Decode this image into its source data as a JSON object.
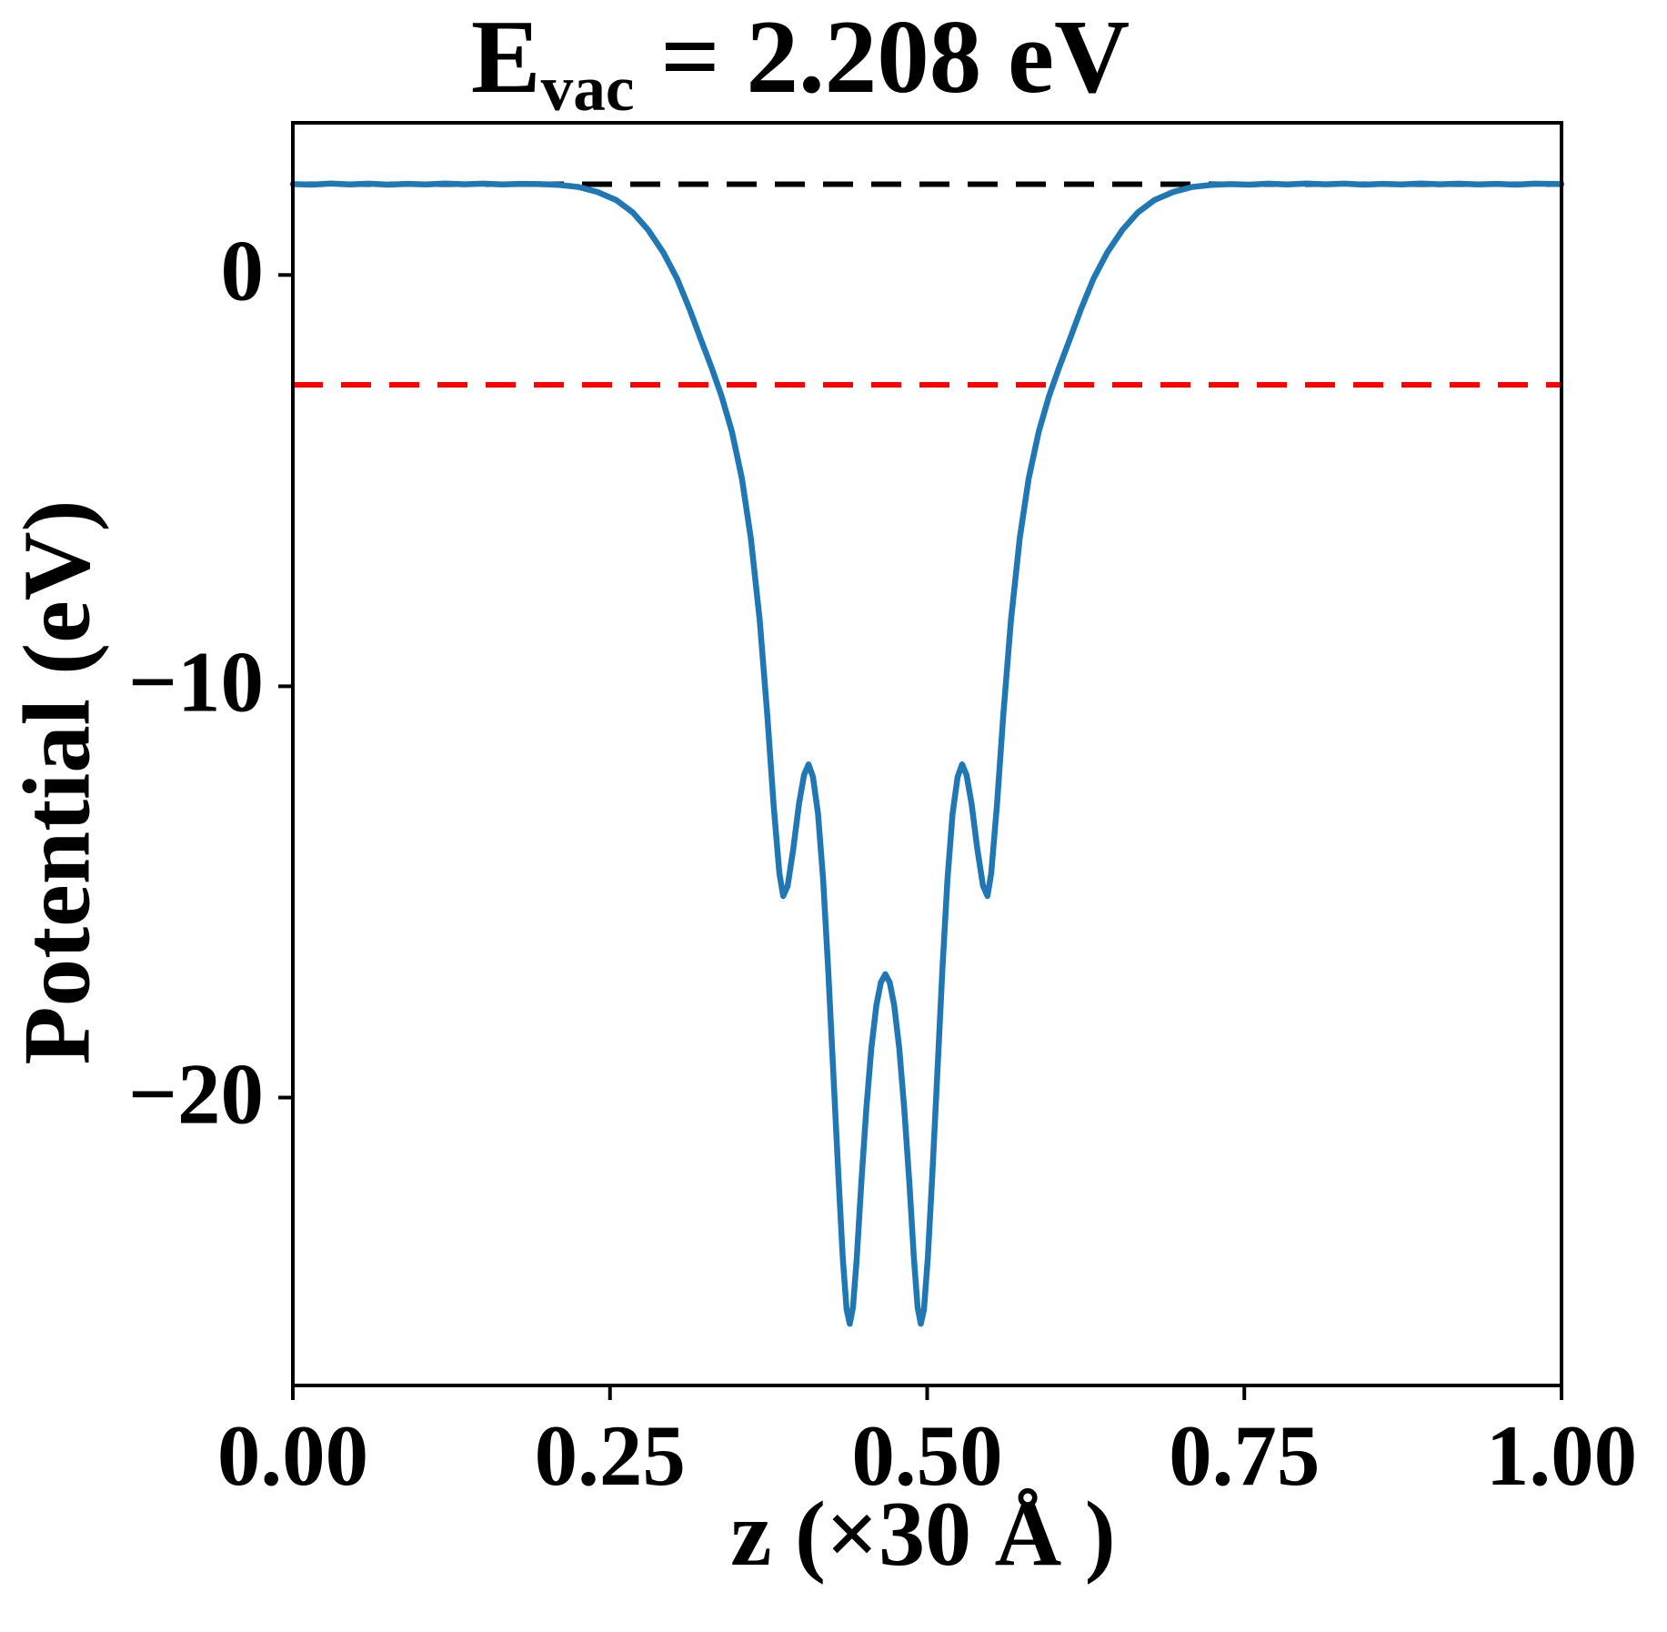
{
  "figure": {
    "title": {
      "symbol": "E",
      "subscript": "vac",
      "equals": " = 2.208 eV"
    },
    "xlabel": "z (×30 Å )",
    "ylabel": "Potential (eV)"
  },
  "chart_data": {
    "type": "line",
    "title": "E_vac = 2.208 eV",
    "xlabel": "z (×30 Å )",
    "ylabel": "Potential (eV)",
    "xlim": [
      0,
      1
    ],
    "ylim": [
      -27,
      3.7
    ],
    "grid": false,
    "legend": null,
    "xticks": {
      "values": [
        0,
        0.25,
        0.5,
        0.75,
        1.0
      ],
      "labels": [
        "0.00",
        "0.25",
        "0.50",
        "0.75",
        "1.00"
      ]
    },
    "yticks": {
      "values": [
        0,
        -10,
        -20
      ],
      "labels": [
        "0",
        "−10",
        "−20"
      ]
    },
    "reference_lines": [
      {
        "name": "vacuum-level",
        "y": 2.208,
        "color": "#000000",
        "style": "dashed"
      },
      {
        "name": "reference-level",
        "y": -2.67,
        "color": "#ff0000",
        "style": "dashed"
      }
    ],
    "series": [
      {
        "name": "planar-averaged-potential",
        "color": "#1f77b4",
        "points": [
          [
            0.0,
            2.21
          ],
          [
            0.015,
            2.195
          ],
          [
            0.03,
            2.225
          ],
          [
            0.045,
            2.2
          ],
          [
            0.06,
            2.22
          ],
          [
            0.075,
            2.195
          ],
          [
            0.09,
            2.215
          ],
          [
            0.105,
            2.2
          ],
          [
            0.12,
            2.225
          ],
          [
            0.135,
            2.205
          ],
          [
            0.15,
            2.22
          ],
          [
            0.165,
            2.2
          ],
          [
            0.18,
            2.215
          ],
          [
            0.195,
            2.21
          ],
          [
            0.21,
            2.19
          ],
          [
            0.225,
            2.14
          ],
          [
            0.24,
            2.02
          ],
          [
            0.255,
            1.82
          ],
          [
            0.268,
            1.52
          ],
          [
            0.28,
            1.1
          ],
          [
            0.292,
            0.55
          ],
          [
            0.303,
            -0.1
          ],
          [
            0.313,
            -0.85
          ],
          [
            0.322,
            -1.6
          ],
          [
            0.33,
            -2.25
          ],
          [
            0.338,
            -2.95
          ],
          [
            0.346,
            -3.8
          ],
          [
            0.354,
            -4.95
          ],
          [
            0.361,
            -6.4
          ],
          [
            0.368,
            -8.4
          ],
          [
            0.374,
            -10.7
          ],
          [
            0.379,
            -12.9
          ],
          [
            0.3835,
            -14.55
          ],
          [
            0.3865,
            -15.1
          ],
          [
            0.39,
            -14.85
          ],
          [
            0.3945,
            -13.95
          ],
          [
            0.399,
            -12.85
          ],
          [
            0.403,
            -12.15
          ],
          [
            0.4065,
            -11.9
          ],
          [
            0.41,
            -12.2
          ],
          [
            0.414,
            -13.1
          ],
          [
            0.418,
            -14.7
          ],
          [
            0.422,
            -16.9
          ],
          [
            0.426,
            -19.4
          ],
          [
            0.43,
            -21.9
          ],
          [
            0.4335,
            -23.9
          ],
          [
            0.4365,
            -25.15
          ],
          [
            0.439,
            -25.5
          ],
          [
            0.4415,
            -25.1
          ],
          [
            0.4445,
            -23.9
          ],
          [
            0.448,
            -22.1
          ],
          [
            0.452,
            -20.3
          ],
          [
            0.456,
            -18.8
          ],
          [
            0.46,
            -17.75
          ],
          [
            0.4635,
            -17.2
          ],
          [
            0.467,
            -17.0
          ],
          [
            0.4705,
            -17.2
          ],
          [
            0.474,
            -17.75
          ],
          [
            0.478,
            -18.8
          ],
          [
            0.482,
            -20.3
          ],
          [
            0.486,
            -22.1
          ],
          [
            0.4895,
            -23.9
          ],
          [
            0.4925,
            -25.1
          ],
          [
            0.495,
            -25.5
          ],
          [
            0.4975,
            -25.15
          ],
          [
            0.5005,
            -23.9
          ],
          [
            0.504,
            -21.9
          ],
          [
            0.508,
            -19.4
          ],
          [
            0.512,
            -16.9
          ],
          [
            0.516,
            -14.7
          ],
          [
            0.52,
            -13.1
          ],
          [
            0.524,
            -12.2
          ],
          [
            0.5275,
            -11.9
          ],
          [
            0.531,
            -12.15
          ],
          [
            0.535,
            -12.85
          ],
          [
            0.5395,
            -13.95
          ],
          [
            0.544,
            -14.85
          ],
          [
            0.5475,
            -15.1
          ],
          [
            0.5505,
            -14.55
          ],
          [
            0.555,
            -12.9
          ],
          [
            0.56,
            -10.7
          ],
          [
            0.566,
            -8.4
          ],
          [
            0.573,
            -6.4
          ],
          [
            0.58,
            -4.95
          ],
          [
            0.588,
            -3.8
          ],
          [
            0.596,
            -2.95
          ],
          [
            0.604,
            -2.25
          ],
          [
            0.612,
            -1.6
          ],
          [
            0.621,
            -0.85
          ],
          [
            0.631,
            -0.1
          ],
          [
            0.642,
            0.55
          ],
          [
            0.654,
            1.1
          ],
          [
            0.666,
            1.52
          ],
          [
            0.679,
            1.82
          ],
          [
            0.694,
            2.02
          ],
          [
            0.709,
            2.14
          ],
          [
            0.724,
            2.19
          ],
          [
            0.739,
            2.21
          ],
          [
            0.754,
            2.195
          ],
          [
            0.769,
            2.22
          ],
          [
            0.784,
            2.2
          ],
          [
            0.799,
            2.225
          ],
          [
            0.814,
            2.205
          ],
          [
            0.829,
            2.22
          ],
          [
            0.844,
            2.195
          ],
          [
            0.859,
            2.215
          ],
          [
            0.874,
            2.2
          ],
          [
            0.889,
            2.225
          ],
          [
            0.904,
            2.205
          ],
          [
            0.919,
            2.22
          ],
          [
            0.934,
            2.2
          ],
          [
            0.949,
            2.215
          ],
          [
            0.964,
            2.195
          ],
          [
            0.979,
            2.22
          ],
          [
            1.0,
            2.21
          ]
        ]
      }
    ]
  }
}
